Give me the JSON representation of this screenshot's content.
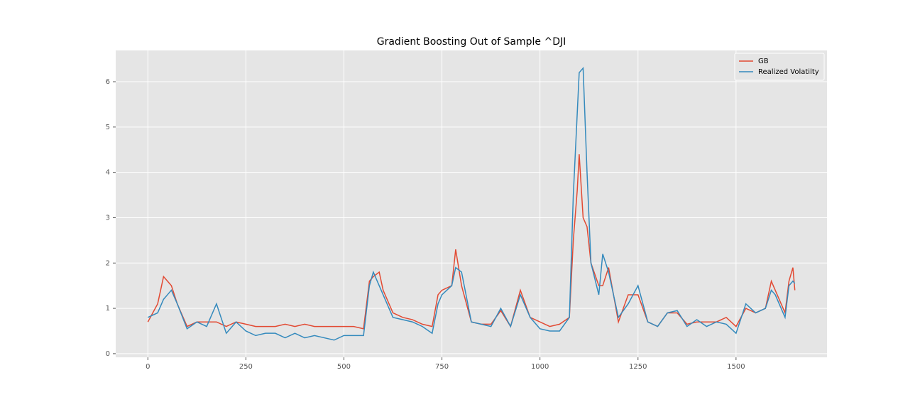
{
  "chart_data": {
    "type": "line",
    "title": "Gradient Boosting Out of Sample ^DJI",
    "x": [
      0,
      25,
      40,
      50,
      60,
      75,
      100,
      125,
      150,
      175,
      200,
      225,
      250,
      275,
      300,
      325,
      350,
      375,
      400,
      425,
      450,
      475,
      500,
      525,
      550,
      565,
      575,
      590,
      600,
      625,
      650,
      675,
      700,
      725,
      740,
      750,
      775,
      785,
      800,
      825,
      850,
      875,
      900,
      925,
      950,
      975,
      1000,
      1025,
      1050,
      1075,
      1085,
      1095,
      1100,
      1110,
      1120,
      1130,
      1150,
      1160,
      1175,
      1200,
      1225,
      1250,
      1275,
      1300,
      1325,
      1350,
      1375,
      1400,
      1425,
      1450,
      1475,
      1500,
      1525,
      1550,
      1575,
      1590,
      1600,
      1625,
      1635,
      1645,
      1650
    ],
    "series": [
      {
        "name": "GB",
        "color": "#E24A33",
        "values": [
          0.7,
          1.1,
          1.7,
          1.6,
          1.5,
          1.1,
          0.6,
          0.7,
          0.7,
          0.7,
          0.6,
          0.7,
          0.65,
          0.6,
          0.6,
          0.6,
          0.65,
          0.6,
          0.65,
          0.6,
          0.6,
          0.6,
          0.6,
          0.6,
          0.55,
          1.6,
          1.7,
          1.8,
          1.4,
          0.9,
          0.8,
          0.75,
          0.65,
          0.6,
          1.3,
          1.4,
          1.5,
          2.3,
          1.5,
          0.7,
          0.65,
          0.65,
          0.95,
          0.6,
          1.4,
          0.8,
          0.7,
          0.6,
          0.65,
          0.8,
          2.5,
          3.6,
          4.4,
          3.0,
          2.8,
          2.0,
          1.5,
          1.5,
          1.9,
          0.7,
          1.3,
          1.3,
          0.7,
          0.6,
          0.9,
          0.9,
          0.65,
          0.7,
          0.7,
          0.7,
          0.8,
          0.6,
          1.0,
          0.9,
          1.0,
          1.6,
          1.4,
          0.9,
          1.6,
          1.9,
          1.4
        ]
      },
      {
        "name": "Realized Volatilty",
        "color": "#348ABD",
        "values": [
          0.8,
          0.9,
          1.2,
          1.3,
          1.4,
          1.1,
          0.55,
          0.7,
          0.6,
          1.1,
          0.45,
          0.7,
          0.5,
          0.4,
          0.45,
          0.45,
          0.35,
          0.45,
          0.35,
          0.4,
          0.35,
          0.3,
          0.4,
          0.4,
          0.4,
          1.5,
          1.8,
          1.5,
          1.3,
          0.8,
          0.75,
          0.7,
          0.6,
          0.45,
          1.1,
          1.3,
          1.5,
          1.9,
          1.8,
          0.7,
          0.65,
          0.6,
          1.0,
          0.6,
          1.3,
          0.8,
          0.55,
          0.5,
          0.5,
          0.8,
          3.5,
          5.3,
          6.2,
          6.3,
          4.0,
          2.0,
          1.3,
          2.2,
          1.8,
          0.8,
          1.1,
          1.5,
          0.7,
          0.6,
          0.9,
          0.95,
          0.6,
          0.75,
          0.6,
          0.7,
          0.65,
          0.45,
          1.1,
          0.9,
          1.0,
          1.4,
          1.3,
          0.8,
          1.5,
          1.6,
          1.55
        ]
      }
    ],
    "xlim": [
      -82,
      1732
    ],
    "ylim": [
      -0.08,
      6.69
    ],
    "xticks": [
      0,
      250,
      500,
      750,
      1000,
      1250,
      1500
    ],
    "yticks": [
      0,
      1,
      2,
      3,
      4,
      5,
      6
    ],
    "grid": true,
    "legend": "upper right"
  }
}
